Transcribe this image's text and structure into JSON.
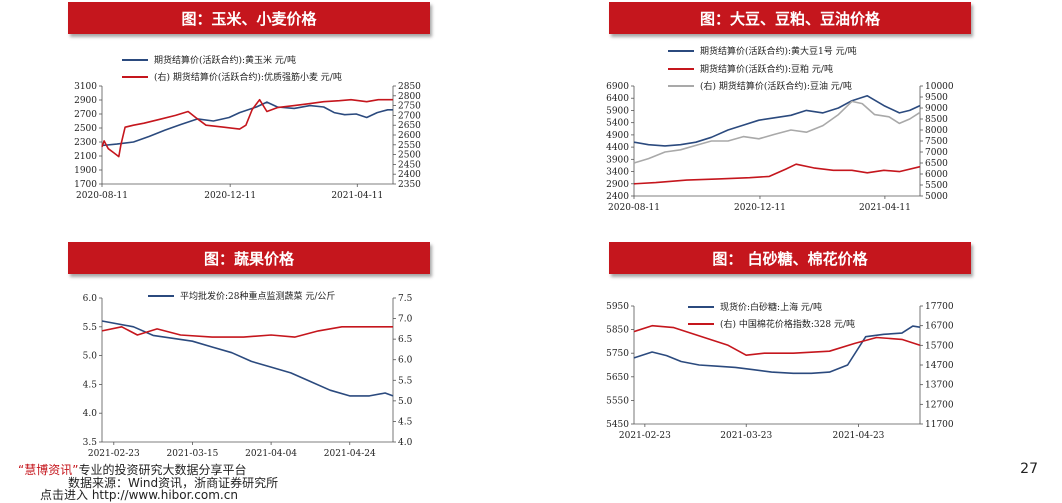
{
  "charts": [
    {
      "title": "图：玉米、小麦价格",
      "left_ticks": [
        "3100",
        "2900",
        "2700",
        "2500",
        "2300",
        "2100",
        "1900",
        "1700"
      ],
      "right_ticks": [
        "2850",
        "2800",
        "2750",
        "2700",
        "2650",
        "2600",
        "2550",
        "2500",
        "2450",
        "2400",
        "2350"
      ],
      "x_ticks": [
        "2020-08-11",
        "2020-12-11",
        "2021-04-11"
      ],
      "legend": [
        "期货结算价(活跃合约):黄玉米 元/吨",
        "(右)  期货结算价(活跃合约):优质强筋小麦 元/吨"
      ]
    },
    {
      "title": "图：大豆、豆粕、豆油价格",
      "left_ticks": [
        "6900",
        "6400",
        "5900",
        "5400",
        "4900",
        "4400",
        "3900",
        "3400",
        "2900",
        "2400"
      ],
      "right_ticks": [
        "10000",
        "9500",
        "9000",
        "8500",
        "8000",
        "7500",
        "7000",
        "6500",
        "6000",
        "5500",
        "5000"
      ],
      "x_ticks": [
        "2020-08-11",
        "2020-12-11",
        "2021-04-11"
      ],
      "legend": [
        "期货结算价(活跃合约):黄大豆1号 元/吨",
        "期货结算价(活跃合约):豆粕 元/吨",
        "(右)  期货结算价(活跃合约):豆油 元/吨"
      ]
    },
    {
      "title": "图：蔬果价格",
      "left_ticks": [
        "6.0",
        "5.5",
        "5.0",
        "4.5",
        "4.0",
        "3.5"
      ],
      "right_ticks": [
        "7.5",
        "7.0",
        "6.5",
        "6.0",
        "5.5",
        "5.0",
        "4.5",
        "4.0"
      ],
      "x_ticks": [
        "2021-02-23",
        "2021-03-15",
        "2021-04-04",
        "2021-04-24"
      ],
      "legend": [
        "平均批发价:28种重点监测蔬菜 元/公斤"
      ]
    },
    {
      "title": "图：  白砂糖、棉花价格",
      "left_ticks": [
        "5950",
        "5850",
        "5750",
        "5650",
        "5550",
        "5450"
      ],
      "right_ticks": [
        "17700",
        "16700",
        "15700",
        "14700",
        "13700",
        "12700",
        "11700"
      ],
      "x_ticks": [
        "2021-02-23",
        "2021-03-23",
        "2021-04-23"
      ],
      "legend": [
        "现货价:白砂糖:上海 元/吨",
        "(右)  中国棉花价格指数:328 元/吨"
      ]
    }
  ],
  "chart_data": [
    {
      "type": "line",
      "title": "图：玉米、小麦价格",
      "x_range": [
        "2020-08-11",
        "2021-05-15"
      ],
      "yleft_range": [
        1700,
        3100
      ],
      "yright_range": [
        2350,
        2850
      ],
      "series": [
        {
          "name": "期货结算价(活跃合约):黄玉米 元/吨",
          "axis": "left",
          "color": "#2b4a7e",
          "points": [
            [
              "2020-08-11",
              2250
            ],
            [
              "2020-08-25",
              2270
            ],
            [
              "2020-09-10",
              2300
            ],
            [
              "2020-09-25",
              2380
            ],
            [
              "2020-10-10",
              2470
            ],
            [
              "2020-10-25",
              2550
            ],
            [
              "2020-11-10",
              2630
            ],
            [
              "2020-11-25",
              2600
            ],
            [
              "2020-12-10",
              2650
            ],
            [
              "2020-12-20",
              2720
            ],
            [
              "2021-01-05",
              2800
            ],
            [
              "2021-01-15",
              2870
            ],
            [
              "2021-01-25",
              2800
            ],
            [
              "2021-02-10",
              2780
            ],
            [
              "2021-02-25",
              2820
            ],
            [
              "2021-03-10",
              2800
            ],
            [
              "2021-03-20",
              2720
            ],
            [
              "2021-03-30",
              2690
            ],
            [
              "2021-04-10",
              2700
            ],
            [
              "2021-04-20",
              2650
            ],
            [
              "2021-04-30",
              2720
            ],
            [
              "2021-05-10",
              2760
            ],
            [
              "2021-05-15",
              2760
            ]
          ]
        },
        {
          "name": "(右)  期货结算价(活跃合约):优质强筋小麦 元/吨",
          "axis": "right",
          "color": "#c5161d",
          "points": [
            [
              "2020-08-11",
              2540
            ],
            [
              "2020-08-13",
              2570
            ],
            [
              "2020-08-17",
              2530
            ],
            [
              "2020-08-22",
              2510
            ],
            [
              "2020-08-27",
              2490
            ],
            [
              "2020-08-29",
              2550
            ],
            [
              "2020-09-02",
              2640
            ],
            [
              "2020-09-10",
              2650
            ],
            [
              "2020-09-20",
              2660
            ],
            [
              "2020-10-05",
              2680
            ],
            [
              "2020-10-20",
              2700
            ],
            [
              "2020-11-01",
              2720
            ],
            [
              "2020-11-08",
              2690
            ],
            [
              "2020-11-18",
              2650
            ],
            [
              "2020-12-05",
              2640
            ],
            [
              "2020-12-20",
              2630
            ],
            [
              "2020-12-26",
              2650
            ],
            [
              "2021-01-01",
              2730
            ],
            [
              "2021-01-08",
              2780
            ],
            [
              "2021-01-15",
              2720
            ],
            [
              "2021-01-25",
              2740
            ],
            [
              "2021-02-10",
              2750
            ],
            [
              "2021-02-25",
              2760
            ],
            [
              "2021-03-10",
              2770
            ],
            [
              "2021-03-25",
              2775
            ],
            [
              "2021-04-05",
              2780
            ],
            [
              "2021-04-20",
              2770
            ],
            [
              "2021-05-01",
              2780
            ],
            [
              "2021-05-15",
              2780
            ]
          ]
        }
      ]
    },
    {
      "type": "line",
      "title": "图：大豆、豆粕、豆油价格",
      "x_range": [
        "2020-08-11",
        "2021-05-15"
      ],
      "yleft_range": [
        2400,
        6900
      ],
      "yright_range": [
        5000,
        10000
      ],
      "series": [
        {
          "name": "期货结算价(活跃合约):黄大豆1号 元/吨",
          "axis": "left",
          "color": "#2b4a7e",
          "points": [
            [
              "2020-08-11",
              4600
            ],
            [
              "2020-08-25",
              4500
            ],
            [
              "2020-09-10",
              4450
            ],
            [
              "2020-09-25",
              4500
            ],
            [
              "2020-10-10",
              4600
            ],
            [
              "2020-10-25",
              4800
            ],
            [
              "2020-11-10",
              5100
            ],
            [
              "2020-11-25",
              5300
            ],
            [
              "2020-12-10",
              5500
            ],
            [
              "2020-12-25",
              5600
            ],
            [
              "2021-01-10",
              5700
            ],
            [
              "2021-01-25",
              5900
            ],
            [
              "2021-02-10",
              5800
            ],
            [
              "2021-02-25",
              6000
            ],
            [
              "2021-03-10",
              6300
            ],
            [
              "2021-03-25",
              6500
            ],
            [
              "2021-04-10",
              6100
            ],
            [
              "2021-04-25",
              5800
            ],
            [
              "2021-05-05",
              5900
            ],
            [
              "2021-05-15",
              6100
            ]
          ]
        },
        {
          "name": "期货结算价(活跃合约):豆粕 元/吨",
          "axis": "left",
          "color": "#c5161d",
          "points": [
            [
              "2020-08-11",
              2900
            ],
            [
              "2020-09-01",
              2950
            ],
            [
              "2020-10-01",
              3050
            ],
            [
              "2020-11-01",
              3100
            ],
            [
              "2020-12-01",
              3150
            ],
            [
              "2020-12-20",
              3200
            ],
            [
              "2021-01-05",
              3500
            ],
            [
              "2021-01-15",
              3700
            ],
            [
              "2021-02-01",
              3550
            ],
            [
              "2021-02-20",
              3450
            ],
            [
              "2021-03-10",
              3450
            ],
            [
              "2021-03-25",
              3350
            ],
            [
              "2021-04-10",
              3450
            ],
            [
              "2021-04-25",
              3400
            ],
            [
              "2021-05-15",
              3600
            ]
          ]
        },
        {
          "name": "(右)  期货结算价(活跃合约):豆油 元/吨",
          "axis": "right",
          "color": "#a9a9a9",
          "points": [
            [
              "2020-08-11",
              6500
            ],
            [
              "2020-08-25",
              6700
            ],
            [
              "2020-09-10",
              7000
            ],
            [
              "2020-09-25",
              7100
            ],
            [
              "2020-10-10",
              7300
            ],
            [
              "2020-10-25",
              7500
            ],
            [
              "2020-11-10",
              7500
            ],
            [
              "2020-11-25",
              7700
            ],
            [
              "2020-12-10",
              7600
            ],
            [
              "2020-12-25",
              7800
            ],
            [
              "2021-01-10",
              8000
            ],
            [
              "2021-01-25",
              7900
            ],
            [
              "2021-02-10",
              8200
            ],
            [
              "2021-02-25",
              8700
            ],
            [
              "2021-03-10",
              9300
            ],
            [
              "2021-03-20",
              9200
            ],
            [
              "2021-04-01",
              8700
            ],
            [
              "2021-04-15",
              8600
            ],
            [
              "2021-04-25",
              8300
            ],
            [
              "2021-05-05",
              8500
            ],
            [
              "2021-05-15",
              8800
            ]
          ]
        }
      ]
    },
    {
      "type": "line",
      "title": "图：蔬果价格",
      "x_range": [
        "2021-02-20",
        "2021-05-05"
      ],
      "yleft_range": [
        3.5,
        6.0
      ],
      "yright_range": [
        4.0,
        7.5
      ],
      "series": [
        {
          "name": "平均批发价:28种重点监测蔬菜 元/公斤",
          "axis": "left",
          "color": "#2b4a7e",
          "points": [
            [
              "2021-02-20",
              5.6
            ],
            [
              "2021-02-28",
              5.5
            ],
            [
              "2021-03-05",
              5.35
            ],
            [
              "2021-03-10",
              5.3
            ],
            [
              "2021-03-15",
              5.25
            ],
            [
              "2021-03-20",
              5.15
            ],
            [
              "2021-03-25",
              5.05
            ],
            [
              "2021-03-30",
              4.9
            ],
            [
              "2021-04-04",
              4.8
            ],
            [
              "2021-04-09",
              4.7
            ],
            [
              "2021-04-14",
              4.55
            ],
            [
              "2021-04-19",
              4.4
            ],
            [
              "2021-04-24",
              4.3
            ],
            [
              "2021-04-29",
              4.3
            ],
            [
              "2021-05-03",
              4.35
            ],
            [
              "2021-05-05",
              4.3
            ]
          ]
        },
        {
          "name": "",
          "axis": "right",
          "color": "#c5161d",
          "points": [
            [
              "2021-02-20",
              6.7
            ],
            [
              "2021-02-25",
              6.8
            ],
            [
              "2021-03-01",
              6.6
            ],
            [
              "2021-03-06",
              6.75
            ],
            [
              "2021-03-12",
              6.6
            ],
            [
              "2021-03-20",
              6.55
            ],
            [
              "2021-03-28",
              6.55
            ],
            [
              "2021-04-04",
              6.6
            ],
            [
              "2021-04-10",
              6.55
            ],
            [
              "2021-04-16",
              6.7
            ],
            [
              "2021-04-22",
              6.8
            ],
            [
              "2021-04-28",
              6.8
            ],
            [
              "2021-05-05",
              6.8
            ]
          ]
        }
      ]
    },
    {
      "type": "line",
      "title": "图：  白砂糖、棉花价格",
      "x_range": [
        "2021-02-20",
        "2021-05-10"
      ],
      "yleft_range": [
        5450,
        5950
      ],
      "yright_range": [
        11700,
        17700
      ],
      "series": [
        {
          "name": "现货价:白砂糖:上海 元/吨",
          "axis": "left",
          "color": "#2b4a7e",
          "points": [
            [
              "2021-02-20",
              5730
            ],
            [
              "2021-02-25",
              5755
            ],
            [
              "2021-03-01",
              5740
            ],
            [
              "2021-03-05",
              5715
            ],
            [
              "2021-03-10",
              5700
            ],
            [
              "2021-03-15",
              5695
            ],
            [
              "2021-03-20",
              5690
            ],
            [
              "2021-03-25",
              5680
            ],
            [
              "2021-03-30",
              5670
            ],
            [
              "2021-04-05",
              5665
            ],
            [
              "2021-04-10",
              5665
            ],
            [
              "2021-04-15",
              5670
            ],
            [
              "2021-04-20",
              5700
            ],
            [
              "2021-04-25",
              5820
            ],
            [
              "2021-04-30",
              5830
            ],
            [
              "2021-05-05",
              5835
            ],
            [
              "2021-05-08",
              5865
            ],
            [
              "2021-05-10",
              5860
            ]
          ]
        },
        {
          "name": "(右)  中国棉花价格指数:328 元/吨",
          "axis": "right",
          "color": "#c5161d",
          "points": [
            [
              "2021-02-20",
              16400
            ],
            [
              "2021-02-25",
              16700
            ],
            [
              "2021-03-03",
              16600
            ],
            [
              "2021-03-08",
              16300
            ],
            [
              "2021-03-13",
              16000
            ],
            [
              "2021-03-18",
              15700
            ],
            [
              "2021-03-23",
              15200
            ],
            [
              "2021-03-28",
              15300
            ],
            [
              "2021-04-05",
              15300
            ],
            [
              "2021-04-15",
              15400
            ],
            [
              "2021-04-22",
              15800
            ],
            [
              "2021-04-28",
              16100
            ],
            [
              "2021-05-05",
              16000
            ],
            [
              "2021-05-10",
              15700
            ]
          ]
        }
      ]
    }
  ],
  "footer": {
    "line1_brand": "“慧博资讯”",
    "line1_text": "专业的投资研究大数据分享平台",
    "line2": "数据来源：Wind资讯，浙商证券研究所",
    "line3": "点击进入 http://www.hibor.com.cn",
    "page": "27"
  }
}
